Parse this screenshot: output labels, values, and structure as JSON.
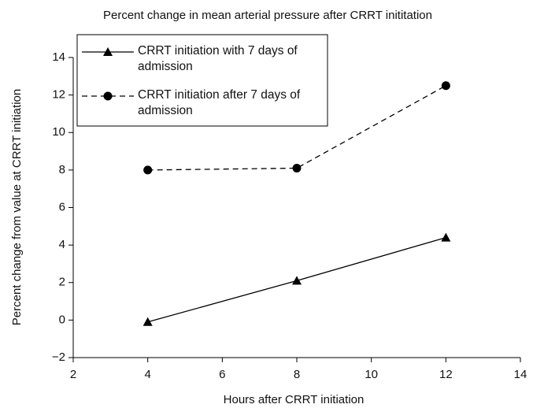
{
  "chart_data": {
    "type": "line",
    "title": "Percent change in mean arterial pressure after CRRT inititation",
    "x_label": "Hours after CRRT initiation",
    "y_label": "Percent change from value at CRRT initiation",
    "x": [
      4,
      8,
      12
    ],
    "series": [
      {
        "name": "CRRT initiation with 7 days of admission",
        "color": "#000000",
        "marker": "triangle",
        "dash": "solid",
        "values": [
          -0.1,
          2.1,
          4.4
        ]
      },
      {
        "name": "CRRT initiation after 7 days of admission",
        "color": "#000000",
        "marker": "circle",
        "dash": "dashed",
        "values": [
          8.0,
          8.1,
          12.5
        ]
      }
    ],
    "xlim": [
      2,
      14
    ],
    "xticks": [
      2,
      4,
      6,
      8,
      10,
      12,
      14
    ],
    "ylim": [
      -2,
      14
    ],
    "yticks": [
      {
        "value": -2,
        "label": "−2"
      },
      0,
      2,
      4,
      6,
      8,
      10,
      12,
      14
    ],
    "grid": false,
    "legend": "upper left"
  }
}
